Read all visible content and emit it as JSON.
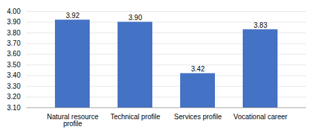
{
  "chart_data": {
    "type": "bar",
    "categories": [
      "Natural resource\nprofile",
      "Technical profile",
      "Services profile",
      "Vocational career"
    ],
    "values": [
      3.92,
      3.9,
      3.42,
      3.83
    ],
    "value_labels": [
      "3.92",
      "3.90",
      "3.42",
      "3.83"
    ],
    "data_labels": true,
    "color": "#4472C4",
    "ylim": [
      3.1,
      4.0
    ],
    "yticks": [
      {
        "value": 3.1,
        "label": "3.10"
      },
      {
        "value": 3.2,
        "label": "3.20"
      },
      {
        "value": 3.3,
        "label": "3.30"
      },
      {
        "value": 3.4,
        "label": "3.40"
      },
      {
        "value": 3.5,
        "label": "3.50"
      },
      {
        "value": 3.6,
        "label": "3.60"
      },
      {
        "value": 3.7,
        "label": "3.70"
      },
      {
        "value": 3.8,
        "label": "3.80"
      },
      {
        "value": 3.9,
        "label": "3.90"
      },
      {
        "value": 4.0,
        "label": "4.00"
      }
    ],
    "grid": true
  }
}
